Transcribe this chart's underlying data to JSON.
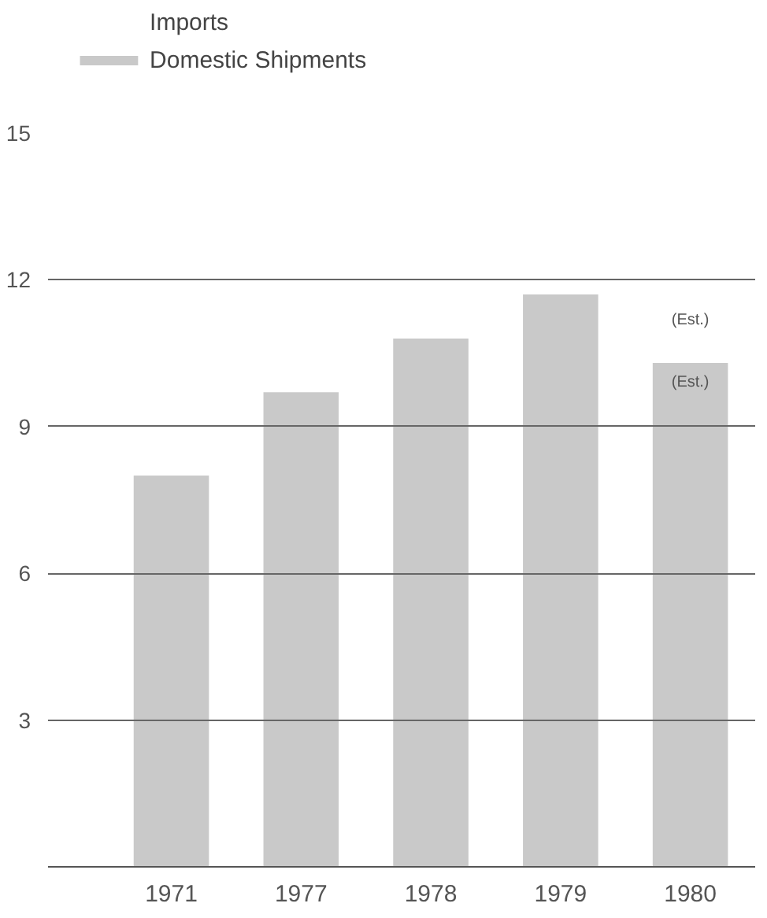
{
  "chart_data": {
    "type": "bar",
    "categories": [
      "1971",
      "1977",
      "1978",
      "1979",
      "1980"
    ],
    "series": [
      {
        "name": "Domestic Shipments",
        "color": "#c9c9c9",
        "values": [
          8.0,
          9.7,
          10.8,
          11.7,
          10.3
        ]
      }
    ],
    "ylim": [
      0,
      15
    ],
    "yticks": [
      3,
      6,
      9,
      12,
      15
    ],
    "grid": "y",
    "legend": "top left",
    "annotations": [
      "Imports",
      "(Est.)",
      "(Est.)"
    ]
  }
}
